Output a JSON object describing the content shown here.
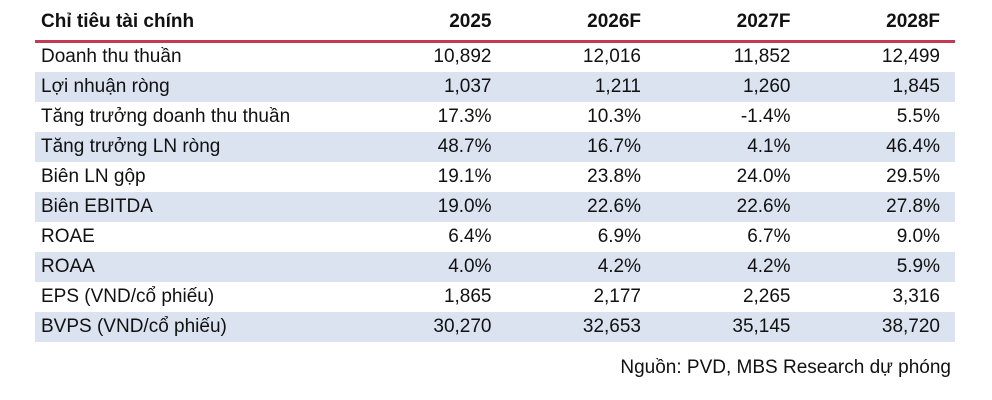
{
  "table": {
    "header": {
      "label": "Chỉ tiêu tài chính",
      "columns": [
        "2025",
        "2026F",
        "2027F",
        "2028F"
      ]
    },
    "rows": [
      {
        "label": "Doanh thu thuần",
        "values": [
          "10,892",
          "12,016",
          "11,852",
          "12,499"
        ]
      },
      {
        "label": "Lợi nhuận ròng",
        "values": [
          "1,037",
          "1,211",
          "1,260",
          "1,845"
        ]
      },
      {
        "label": "Tăng trưởng doanh thu thuần",
        "values": [
          "17.3%",
          "10.3%",
          "-1.4%",
          "5.5%"
        ]
      },
      {
        "label": "Tăng trưởng LN ròng",
        "values": [
          "48.7%",
          "16.7%",
          "4.1%",
          "46.4%"
        ]
      },
      {
        "label": "Biên LN gộp",
        "values": [
          "19.1%",
          "23.8%",
          "24.0%",
          "29.5%"
        ]
      },
      {
        "label": "Biên EBITDA",
        "values": [
          "19.0%",
          "22.6%",
          "22.6%",
          "27.8%"
        ]
      },
      {
        "label": "ROAE",
        "values": [
          "6.4%",
          "6.9%",
          "6.7%",
          "9.0%"
        ]
      },
      {
        "label": "ROAA",
        "values": [
          "4.0%",
          "4.2%",
          "4.2%",
          "5.9%"
        ]
      },
      {
        "label": "EPS (VND/cổ phiếu)",
        "values": [
          "1,865",
          "2,177",
          "2,265",
          "3,316"
        ]
      },
      {
        "label": "BVPS (VND/cổ phiếu)",
        "values": [
          "30,270",
          "32,653",
          "35,145",
          "38,720"
        ]
      }
    ]
  },
  "footer": {
    "source": "Nguồn: PVD, MBS Research dự phóng"
  },
  "colors": {
    "header_rule": "#c23b55",
    "row_shade": "#dbe2f0",
    "text": "#111111",
    "background": "#ffffff"
  }
}
